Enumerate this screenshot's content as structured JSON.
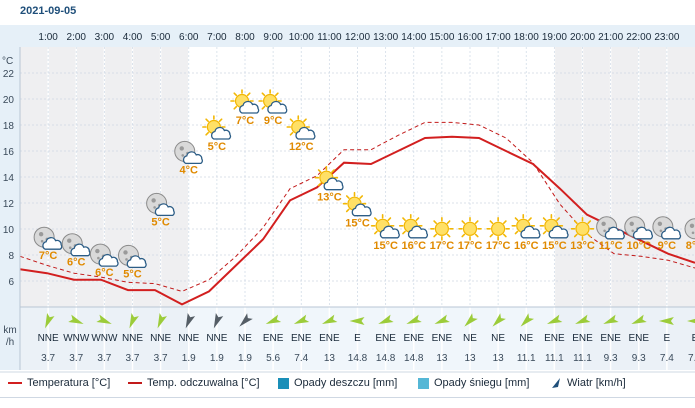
{
  "date": "2021-09-05",
  "y_unit": "°C",
  "wind_unit_line1": "km",
  "wind_unit_line2": "/h",
  "colors": {
    "temperature": "#d21f1f",
    "feels_like": "#c21a1a",
    "rain": "#1a8fb8",
    "snow": "#55b7d6",
    "wind_arrow": "#9ccc3a",
    "wind_arrow_dark": "#555e66",
    "label_text": "#e08a00",
    "night_band": "#efeff1",
    "header_band": "#e6f0f8"
  },
  "chart_data": {
    "type": "line",
    "hours": [
      "1:00",
      "2:00",
      "3:00",
      "4:00",
      "5:00",
      "6:00",
      "7:00",
      "8:00",
      "9:00",
      "10:00",
      "11:00",
      "12:00",
      "13:00",
      "14:00",
      "15:00",
      "16:00",
      "17:00",
      "18:00",
      "19:00",
      "20:00",
      "21:00",
      "22:00",
      "23:00"
    ],
    "yticks": [
      6,
      8,
      10,
      12,
      14,
      16,
      18,
      20,
      22
    ],
    "ylim": [
      4,
      24
    ],
    "temperature": [
      6.9,
      6.6,
      6.1,
      6.1,
      5.3,
      5.3,
      4.2,
      5.2,
      7.2,
      9.2,
      12.2,
      13.2,
      15.1,
      15.0,
      16.0,
      17.0,
      17.1,
      17.0,
      16.0,
      15.0,
      13.1,
      11.1,
      10.1,
      9.1,
      8.1,
      7.4
    ],
    "feels_like": [
      7.9,
      7.2,
      6.6,
      6.3,
      5.9,
      5.8,
      5.2,
      6.1,
      7.9,
      10.1,
      13.1,
      14.1,
      16.1,
      16.1,
      17.2,
      18.2,
      18.2,
      18.0,
      17.0,
      15.1,
      11.9,
      9.6,
      8.1,
      7.9,
      7.6,
      7.0
    ],
    "series_names": [
      "Temperatura [°C]",
      "Temp. odczuwalna [°C]"
    ],
    "temp_labels": [
      "7°C",
      "6°C",
      "6°C",
      "5°C",
      "5°C",
      "4°C",
      "5°C",
      "7°C",
      "9°C",
      "12°C",
      "13°C",
      "15°C",
      "15°C",
      "16°C",
      "17°C",
      "17°C",
      "17°C",
      "16°C",
      "15°C",
      "13°C",
      "11°C",
      "10°C",
      "9°C",
      "8°C"
    ],
    "weather_icons": [
      "moon-cloud-icon",
      "moon-cloud-icon",
      "moon-cloud-icon",
      "moon-cloud-icon",
      "moon-cloud-icon",
      "moon-cloud-icon",
      "sun-cloud-icon",
      "sun-cloud-icon",
      "sun-cloud-icon",
      "sun-cloud-icon",
      "sun-cloud-icon",
      "sun-cloud-icon",
      "sun-cloud-icon",
      "sun-cloud-icon",
      "sun-icon",
      "sun-icon",
      "sun-icon",
      "sun-cloud-icon",
      "sun-cloud-icon",
      "sun-icon",
      "moon-cloud-icon",
      "moon-cloud-icon",
      "moon-cloud-icon",
      "moon-icon"
    ],
    "wind_dirs": [
      "NNE",
      "WNW",
      "WNW",
      "NNE",
      "NNE",
      "NNE",
      "NNE",
      "NE",
      "ENE",
      "ENE",
      "ENE",
      "E",
      "ENE",
      "ENE",
      "ENE",
      "NE",
      "NE",
      "NE",
      "ENE",
      "ENE",
      "ENE",
      "ENE",
      "E",
      "E"
    ],
    "wind_speeds": [
      "3.7",
      "3.7",
      "3.7",
      "3.7",
      "3.7",
      "1.9",
      "1.9",
      "1.9",
      "5.6",
      "7.4",
      "13",
      "14.8",
      "14.8",
      "14.8",
      "13",
      "13",
      "13",
      "11.1",
      "11.1",
      "11.1",
      "9.3",
      "9.3",
      "7.4",
      "7.4"
    ],
    "night_columns": [
      0,
      1,
      2,
      3,
      4,
      5,
      19,
      20,
      21,
      22,
      23
    ]
  },
  "legend": {
    "temperature": "Temperatura [°C]",
    "feels_like": "Temp. odczuwalna [°C]",
    "rain": "Opady deszczu [mm]",
    "snow": "Opady śniegu [mm]",
    "wind": "Wiatr [km/h]"
  }
}
